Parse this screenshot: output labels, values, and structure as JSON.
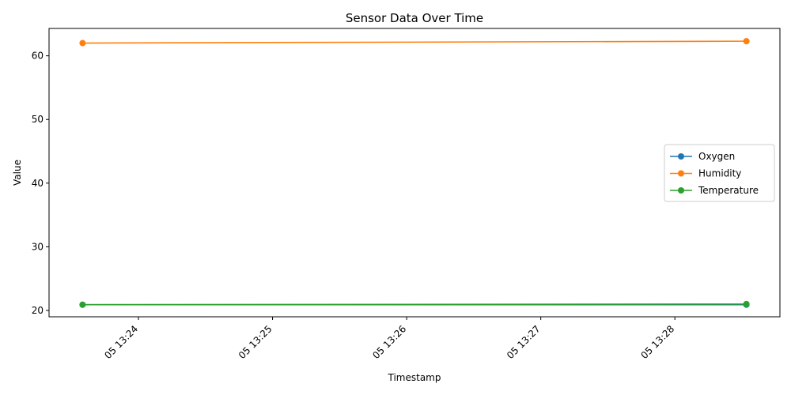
{
  "chart_data": {
    "type": "line",
    "title": "Sensor Data Over Time",
    "xlabel": "Timestamp",
    "ylabel": "Value",
    "x_ticks": [
      "05 13:24",
      "05 13:25",
      "05 13:26",
      "05 13:27",
      "05 13:28"
    ],
    "y_ticks": [
      20,
      30,
      40,
      50,
      60
    ],
    "xlim": [
      "13:23:20",
      "13:28:47"
    ],
    "ylim": [
      19,
      64.3
    ],
    "grid": false,
    "legend": "center-right",
    "x": [
      "13:23:35",
      "13:28:32"
    ],
    "series": [
      {
        "name": "Oxygen",
        "color": "#1f77b4",
        "values": [
          20.9,
          20.9
        ]
      },
      {
        "name": "Humidity",
        "color": "#ff7f0e",
        "values": [
          62.0,
          62.3
        ]
      },
      {
        "name": "Temperature",
        "color": "#2ca02c",
        "values": [
          20.9,
          21.0
        ]
      }
    ]
  }
}
